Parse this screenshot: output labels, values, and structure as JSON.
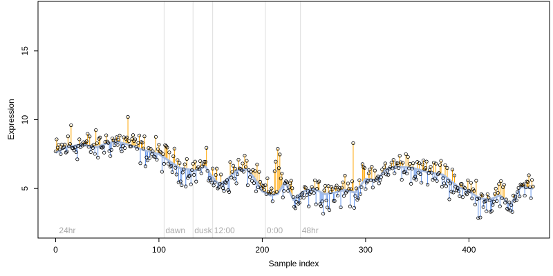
{
  "chart_data": {
    "type": "scatter",
    "title": "",
    "xlabel": "Sample index",
    "ylabel": "Expression",
    "xlim": [
      -17,
      478
    ],
    "ylim": [
      1.4,
      18.6
    ],
    "x_ticks": [
      0,
      100,
      200,
      300,
      400
    ],
    "y_ticks": [
      5,
      10,
      15
    ],
    "grid": false,
    "legend": "none",
    "colors": {
      "above_trend": "#ffa500",
      "below_trend": "#6495ed",
      "trend": "#a9bde0",
      "points": "#000000",
      "annotation_lines": "#dddddd",
      "annotation_text": "#aaaaaa"
    },
    "annotations": [
      {
        "x": 2,
        "label": "24hr",
        "line": false
      },
      {
        "x": 105,
        "label": "dawn",
        "line": true
      },
      {
        "x": 133,
        "label": "dusk",
        "line": true
      },
      {
        "x": 152,
        "label": "12:00",
        "line": true
      },
      {
        "x": 203,
        "label": "0:00",
        "line": true
      },
      {
        "x": 237,
        "label": "48hr",
        "line": true
      }
    ],
    "trend_knots": {
      "x": [
        0,
        10,
        25,
        40,
        50,
        60,
        70,
        85,
        100,
        110,
        120,
        135,
        145,
        150,
        158,
        165,
        175,
        185,
        192,
        200,
        208,
        215,
        222,
        230,
        240,
        250,
        260,
        270,
        280,
        290,
        300,
        310,
        320,
        330,
        345,
        360,
        375,
        390,
        400,
        410,
        420,
        430,
        440,
        450,
        462
      ],
      "y": [
        7.6,
        8.0,
        8.2,
        8.0,
        8.3,
        8.4,
        8.2,
        7.8,
        7.5,
        7.0,
        6.5,
        6.3,
        6.6,
        6.0,
        5.3,
        5.6,
        6.3,
        6.4,
        5.8,
        4.8,
        4.5,
        4.6,
        5.5,
        4.2,
        4.8,
        5.0,
        4.6,
        4.7,
        4.9,
        4.7,
        5.7,
        5.6,
        6.4,
        6.6,
        6.5,
        6.2,
        6.0,
        5.1,
        4.8,
        4.3,
        4.2,
        4.5,
        3.8,
        5.1,
        5.0
      ]
    },
    "n_points": 463,
    "series": [
      {
        "x_range": [
          0,
          462
        ],
        "description_none": ""
      }
    ]
  }
}
